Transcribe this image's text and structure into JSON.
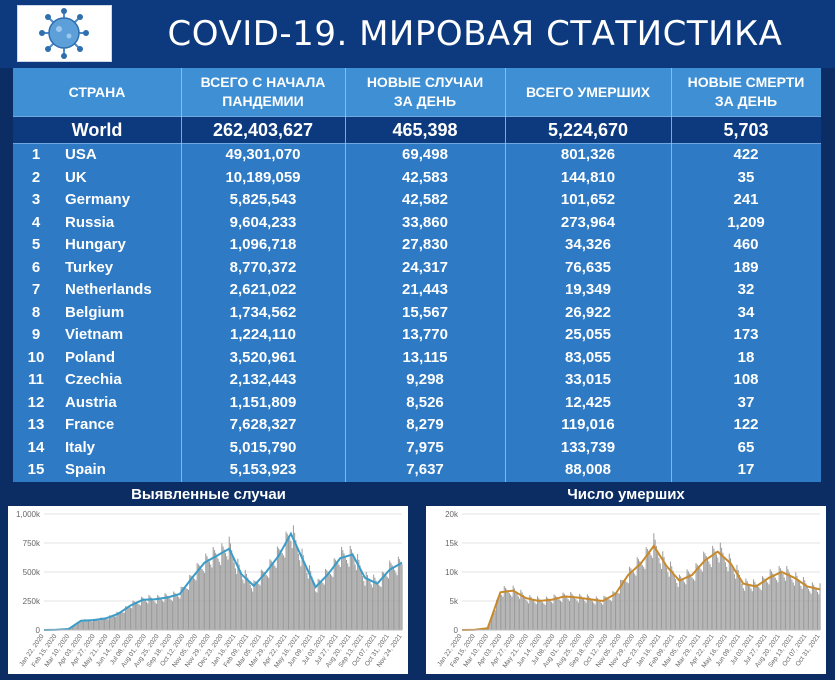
{
  "header": {
    "title": "COVID-19. МИРОВАЯ СТАТИСТИКА"
  },
  "colors": {
    "background": "#0b2d63",
    "header_bg": "#0d3a7e",
    "table_bg": "#2e7ac4",
    "line_cases": "#3a9cc8",
    "line_deaths": "#c88a2c",
    "bars": "#9a9a9a"
  },
  "table": {
    "headers": [
      "СТРАНА",
      "ВСЕГО С НАЧАЛА ПАНДЕМИИ",
      "НОВЫЕ СЛУЧАИ ЗА ДЕНЬ",
      "ВСЕГО УМЕРШИХ",
      "НОВЫЕ СМЕРТИ ЗА ДЕНЬ"
    ],
    "world": {
      "name": "World",
      "total": "262,403,627",
      "new_cases": "465,398",
      "deaths": "5,224,670",
      "new_deaths": "5,703"
    },
    "rows": [
      {
        "rank": "1",
        "country": "USA",
        "total": "49,301,070",
        "new_cases": "69,498",
        "deaths": "801,326",
        "new_deaths": "422"
      },
      {
        "rank": "2",
        "country": "UK",
        "total": "10,189,059",
        "new_cases": "42,583",
        "deaths": "144,810",
        "new_deaths": "35"
      },
      {
        "rank": "3",
        "country": "Germany",
        "total": "5,825,543",
        "new_cases": "42,582",
        "deaths": "101,652",
        "new_deaths": "241"
      },
      {
        "rank": "4",
        "country": "Russia",
        "total": "9,604,233",
        "new_cases": "33,860",
        "deaths": "273,964",
        "new_deaths": "1,209"
      },
      {
        "rank": "5",
        "country": "Hungary",
        "total": "1,096,718",
        "new_cases": "27,830",
        "deaths": "34,326",
        "new_deaths": "460"
      },
      {
        "rank": "6",
        "country": "Turkey",
        "total": "8,770,372",
        "new_cases": "24,317",
        "deaths": "76,635",
        "new_deaths": "189"
      },
      {
        "rank": "7",
        "country": "Netherlands",
        "total": "2,621,022",
        "new_cases": "21,443",
        "deaths": "19,349",
        "new_deaths": "32"
      },
      {
        "rank": "8",
        "country": "Belgium",
        "total": "1,734,562",
        "new_cases": "15,567",
        "deaths": "26,922",
        "new_deaths": "34"
      },
      {
        "rank": "9",
        "country": "Vietnam",
        "total": "1,224,110",
        "new_cases": "13,770",
        "deaths": "25,055",
        "new_deaths": "173"
      },
      {
        "rank": "10",
        "country": "Poland",
        "total": "3,520,961",
        "new_cases": "13,115",
        "deaths": "83,055",
        "new_deaths": "18"
      },
      {
        "rank": "11",
        "country": "Czechia",
        "total": "2,132,443",
        "new_cases": "9,298",
        "deaths": "33,015",
        "new_deaths": "108"
      },
      {
        "rank": "12",
        "country": "Austria",
        "total": "1,151,809",
        "new_cases": "8,526",
        "deaths": "12,425",
        "new_deaths": "37"
      },
      {
        "rank": "13",
        "country": "France",
        "total": "7,628,327",
        "new_cases": "8,279",
        "deaths": "119,016",
        "new_deaths": "122"
      },
      {
        "rank": "14",
        "country": "Italy",
        "total": "5,015,790",
        "new_cases": "7,975",
        "deaths": "133,739",
        "new_deaths": "65"
      },
      {
        "rank": "15",
        "country": "Spain",
        "total": "5,153,923",
        "new_cases": "7,637",
        "deaths": "88,008",
        "new_deaths": "17"
      }
    ]
  },
  "chart_data": [
    {
      "type": "bar",
      "title": "Выявленные случаи",
      "ylim": [
        0,
        1000000
      ],
      "yticks": [
        "0",
        "250k",
        "500k",
        "750k",
        "1,000k"
      ],
      "ytick_values": [
        0,
        250000,
        500000,
        750000,
        1000000
      ],
      "xticks": [
        "Jan 22, 2020",
        "Feb 15, 2020",
        "Mar 10, 2020",
        "Apr 03, 2020",
        "Apr 27, 2020",
        "May 21, 2020",
        "Jun 14, 2020",
        "Jul 08, 2020",
        "Aug 01, 2020",
        "Aug 25, 2020",
        "Sep 18, 2020",
        "Oct 12, 2020",
        "Nov 05, 2020",
        "Nov 29, 2020",
        "Dec 23, 2020",
        "Jan 16, 2021",
        "Feb 09, 2021",
        "Mar 05, 2021",
        "Mar 29, 2021",
        "Apr 22, 2021",
        "May 16, 2021",
        "Jun 09, 2021",
        "Jul 03, 2021",
        "Jul 27, 2021",
        "Aug 20, 2021",
        "Sep 13, 2021",
        "Oct 07, 2021",
        "Oct 31, 2021",
        "Nov 24, 2021"
      ],
      "series": [
        {
          "kind": "bars",
          "values": [
            0,
            2000,
            9000,
            80000,
            85000,
            100000,
            140000,
            210000,
            260000,
            265000,
            280000,
            310000,
            450000,
            580000,
            640000,
            700000,
            480000,
            380000,
            500000,
            640000,
            830000,
            600000,
            370000,
            480000,
            620000,
            650000,
            450000,
            400000,
            520000,
            580000
          ]
        },
        {
          "kind": "line",
          "values": [
            0,
            2000,
            9000,
            80000,
            85000,
            100000,
            140000,
            210000,
            260000,
            265000,
            280000,
            310000,
            450000,
            580000,
            640000,
            700000,
            480000,
            380000,
            500000,
            640000,
            830000,
            600000,
            370000,
            480000,
            620000,
            650000,
            450000,
            400000,
            520000,
            580000
          ]
        }
      ]
    },
    {
      "type": "bar",
      "title": "Число умерших",
      "ylim": [
        0,
        20000
      ],
      "yticks": [
        "0",
        "5k",
        "10k",
        "15k",
        "20k"
      ],
      "ytick_values": [
        0,
        5000,
        10000,
        15000,
        20000
      ],
      "xticks": [
        "Jan 22, 2020",
        "Feb 15, 2020",
        "Mar 10, 2020",
        "Apr 03, 2020",
        "Apr 27, 2020",
        "May 21, 2020",
        "Jun 14, 2020",
        "Jul 08, 2020",
        "Aug 01, 2020",
        "Aug 25, 2020",
        "Sep 18, 2020",
        "Oct 12, 2020",
        "Nov 05, 2020",
        "Nov 29, 2020",
        "Dec 23, 2020",
        "Jan 16, 2021",
        "Feb 09, 2021",
        "Mar 05, 2021",
        "Mar 29, 2021",
        "Apr 22, 2021",
        "May 16, 2021",
        "Jun 09, 2021",
        "Jul 03, 2021",
        "Jul 27, 2021",
        "Aug 20, 2021",
        "Sep 13, 2021",
        "Oct 07, 2021",
        "Oct 31, 2021"
      ],
      "series": [
        {
          "kind": "bars",
          "values": [
            0,
            50,
            300,
            6500,
            6800,
            5500,
            5000,
            5200,
            5800,
            5600,
            5300,
            5000,
            6200,
            9500,
            11500,
            14500,
            11000,
            8500,
            9500,
            12000,
            13500,
            11500,
            8000,
            7500,
            9000,
            10000,
            9000,
            7500,
            7000
          ]
        },
        {
          "kind": "line",
          "values": [
            0,
            50,
            300,
            6500,
            6800,
            5500,
            5000,
            5200,
            5800,
            5600,
            5300,
            5000,
            6200,
            9500,
            11500,
            14500,
            11000,
            8500,
            9500,
            12000,
            13500,
            11500,
            8000,
            7500,
            9000,
            10000,
            9000,
            7500,
            7000
          ]
        }
      ]
    }
  ]
}
